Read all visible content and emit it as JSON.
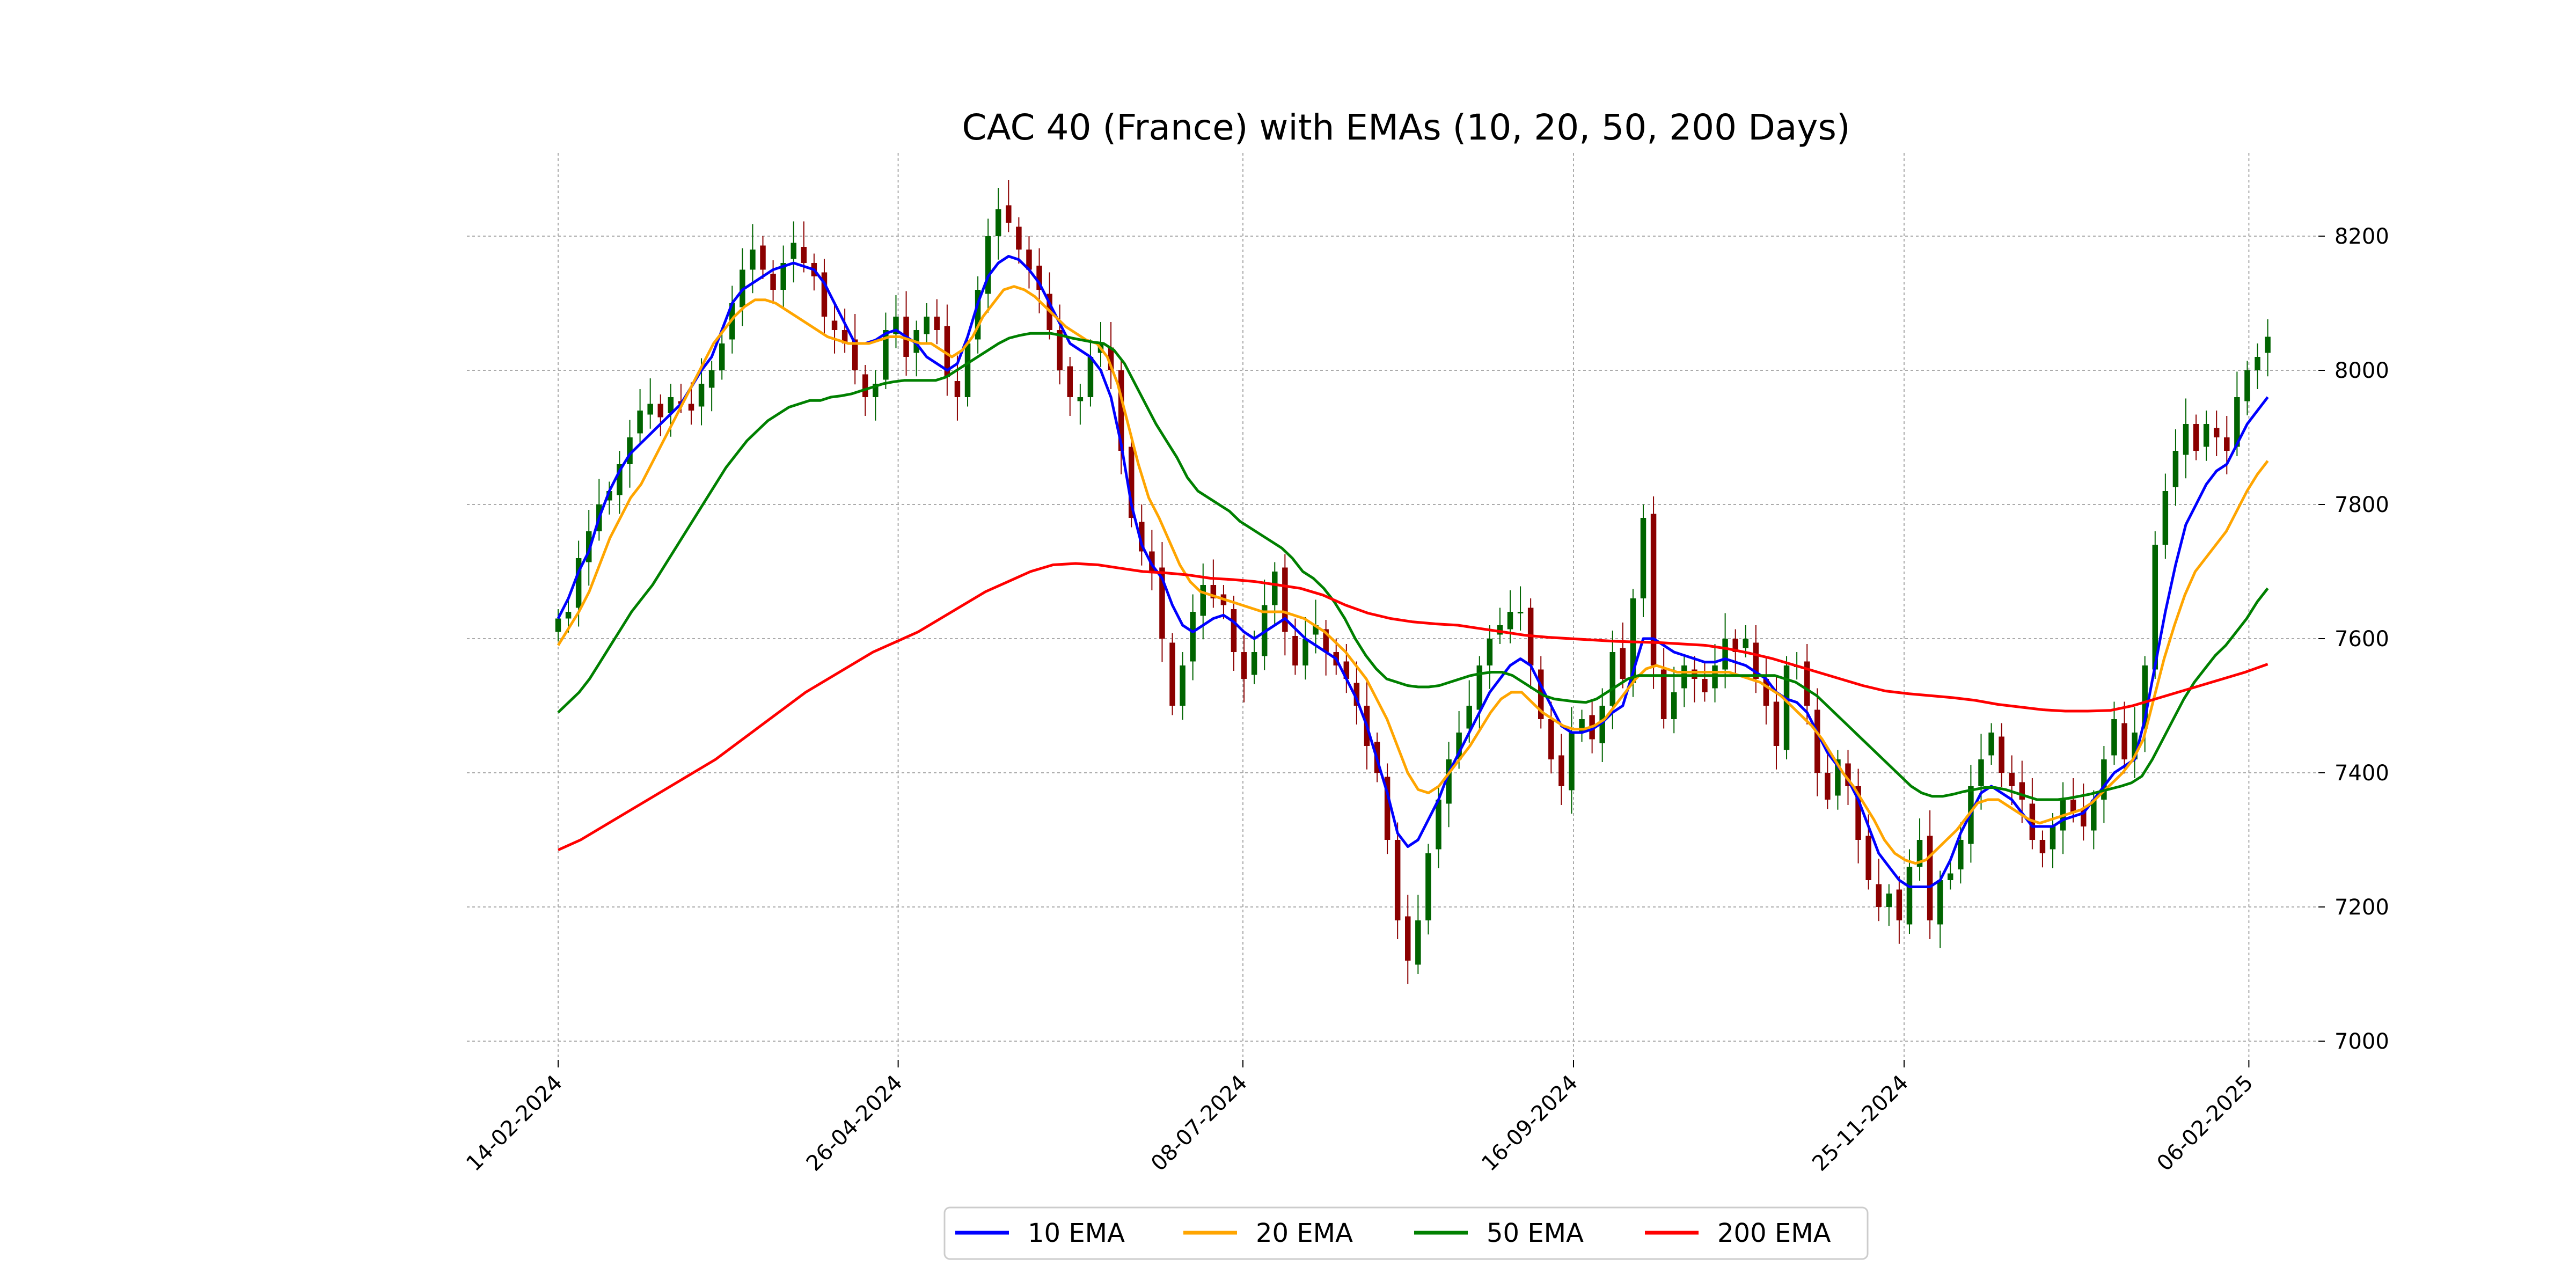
{
  "chart_data": {
    "type": "line",
    "title": "CAC 40 (France) with EMAs (10, 20, 50, 200 Days)",
    "xlabel": "",
    "ylabel": "",
    "x_ticks": [
      "14-02-2024",
      "26-04-2024",
      "08-07-2024",
      "16-09-2024",
      "25-11-2024",
      "06-02-2025"
    ],
    "y_ticks": [
      7000,
      7200,
      7400,
      7600,
      7800,
      8000,
      8200
    ],
    "ylim": [
      6970,
      8260
    ],
    "x_range": [
      "2024-02-14",
      "2025-02-10"
    ],
    "grid": true,
    "legend_position": "bottom-center",
    "colors": {
      "up": "#006400",
      "down": "#8B0000",
      "ema10": "#0000ff",
      "ema20": "#ffa500",
      "ema50": "#008000",
      "ema200": "#ff0000",
      "grid": "#aaaaaa"
    },
    "candles": {
      "dates": [
        "2024-02-14",
        "2025-02-10"
      ],
      "close": [
        7630,
        7640,
        7720,
        7760,
        7800,
        7820,
        7860,
        7900,
        7940,
        7950,
        7930,
        7960,
        7950,
        7940,
        7980,
        8000,
        8040,
        8100,
        8150,
        8180,
        8150,
        8120,
        8160,
        8190,
        8160,
        8140,
        8080,
        8060,
        8040,
        8000,
        7960,
        7980,
        8060,
        8080,
        8020,
        8060,
        8080,
        8060,
        7990,
        7960,
        8040,
        8120,
        8200,
        8240,
        8220,
        8180,
        8150,
        8120,
        8060,
        8000,
        7960,
        7960,
        8020,
        8040,
        8000,
        7880,
        7780,
        7730,
        7700,
        7600,
        7500,
        7560,
        7640,
        7680,
        7660,
        7650,
        7580,
        7540,
        7580,
        7650,
        7700,
        7610,
        7560,
        7600,
        7620,
        7580,
        7560,
        7540,
        7500,
        7440,
        7400,
        7300,
        7180,
        7120,
        7180,
        7280,
        7360,
        7420,
        7460,
        7500,
        7560,
        7600,
        7620,
        7640,
        7640,
        7560,
        7480,
        7420,
        7380,
        7460,
        7480,
        7450,
        7500,
        7580,
        7540,
        7660,
        7780,
        7560,
        7480,
        7520,
        7560,
        7540,
        7520,
        7560,
        7600,
        7580,
        7600,
        7540,
        7500,
        7440,
        7560,
        7560,
        7500,
        7400,
        7360,
        7420,
        7380,
        7300,
        7240,
        7200,
        7220,
        7180,
        7260,
        7300,
        7180,
        7240,
        7250,
        7300,
        7380,
        7420,
        7460,
        7400,
        7380,
        7360,
        7300,
        7280,
        7320,
        7360,
        7340,
        7320,
        7360,
        7420,
        7480,
        7420,
        7460,
        7560,
        7740,
        7820,
        7880,
        7920,
        7880,
        7920,
        7900,
        7880,
        7960,
        8000,
        8020,
        8050
      ]
    },
    "series": [
      {
        "name": "10 EMA",
        "values": [
          7630,
          7660,
          7700,
          7730,
          7780,
          7820,
          7850,
          7875,
          7890,
          7905,
          7920,
          7935,
          7950,
          7975,
          8000,
          8020,
          8060,
          8100,
          8120,
          8130,
          8140,
          8150,
          8155,
          8160,
          8155,
          8150,
          8130,
          8100,
          8070,
          8040,
          8040,
          8045,
          8055,
          8060,
          8050,
          8040,
          8020,
          8010,
          8000,
          8010,
          8050,
          8100,
          8140,
          8160,
          8170,
          8165,
          8150,
          8130,
          8100,
          8070,
          8040,
          8030,
          8020,
          8000,
          7960,
          7890,
          7800,
          7740,
          7710,
          7690,
          7650,
          7620,
          7610,
          7620,
          7630,
          7635,
          7625,
          7610,
          7600,
          7610,
          7620,
          7630,
          7615,
          7600,
          7590,
          7580,
          7570,
          7540,
          7510,
          7470,
          7420,
          7370,
          7310,
          7290,
          7300,
          7330,
          7360,
          7400,
          7430,
          7460,
          7490,
          7520,
          7540,
          7560,
          7570,
          7560,
          7530,
          7500,
          7470,
          7460,
          7460,
          7465,
          7475,
          7490,
          7500,
          7550,
          7600,
          7600,
          7590,
          7580,
          7575,
          7570,
          7565,
          7565,
          7570,
          7565,
          7560,
          7550,
          7540,
          7520,
          7510,
          7505,
          7490,
          7460,
          7430,
          7410,
          7390,
          7360,
          7320,
          7280,
          7260,
          7240,
          7230,
          7230,
          7230,
          7240,
          7270,
          7310,
          7340,
          7370,
          7380,
          7370,
          7360,
          7340,
          7320,
          7320,
          7320,
          7330,
          7335,
          7340,
          7360,
          7380,
          7400,
          7410,
          7420,
          7480,
          7560,
          7640,
          7710,
          7770,
          7800,
          7830,
          7850,
          7860,
          7890,
          7920,
          7940,
          7960
        ]
      },
      {
        "name": "20 EMA",
        "values": [
          7590,
          7615,
          7640,
          7670,
          7710,
          7750,
          7780,
          7810,
          7830,
          7860,
          7890,
          7920,
          7950,
          7980,
          8010,
          8040,
          8060,
          8080,
          8095,
          8105,
          8105,
          8100,
          8090,
          8080,
          8070,
          8060,
          8050,
          8045,
          8040,
          8040,
          8040,
          8045,
          8050,
          8050,
          8045,
          8040,
          8040,
          8030,
          8020,
          8030,
          8050,
          8080,
          8100,
          8120,
          8125,
          8120,
          8110,
          8095,
          8080,
          8065,
          8055,
          8045,
          8040,
          8020,
          7980,
          7920,
          7860,
          7810,
          7780,
          7745,
          7710,
          7685,
          7670,
          7665,
          7660,
          7655,
          7650,
          7645,
          7640,
          7640,
          7640,
          7635,
          7630,
          7620,
          7610,
          7595,
          7580,
          7560,
          7540,
          7510,
          7480,
          7440,
          7400,
          7375,
          7370,
          7380,
          7400,
          7420,
          7440,
          7465,
          7490,
          7510,
          7520,
          7520,
          7505,
          7490,
          7480,
          7470,
          7465,
          7465,
          7470,
          7480,
          7500,
          7520,
          7540,
          7555,
          7560,
          7555,
          7550,
          7550,
          7550,
          7550,
          7550,
          7550,
          7545,
          7540,
          7535,
          7525,
          7515,
          7500,
          7485,
          7470,
          7450,
          7425,
          7400,
          7380,
          7355,
          7330,
          7300,
          7280,
          7270,
          7265,
          7270,
          7285,
          7300,
          7315,
          7335,
          7355,
          7360,
          7360,
          7350,
          7340,
          7330,
          7325,
          7330,
          7335,
          7340,
          7345,
          7355,
          7370,
          7385,
          7400,
          7420,
          7450,
          7510,
          7570,
          7620,
          7665,
          7700,
          7720,
          7740,
          7760,
          7790,
          7820,
          7845,
          7865
        ]
      },
      {
        "name": "50 EMA",
        "values": [
          7490,
          7505,
          7520,
          7540,
          7565,
          7590,
          7615,
          7640,
          7660,
          7680,
          7705,
          7730,
          7755,
          7780,
          7805,
          7830,
          7855,
          7875,
          7895,
          7910,
          7925,
          7935,
          7945,
          7950,
          7955,
          7955,
          7960,
          7962,
          7965,
          7970,
          7975,
          7980,
          7983,
          7985,
          7985,
          7985,
          7985,
          7990,
          8000,
          8010,
          8020,
          8030,
          8040,
          8048,
          8052,
          8055,
          8055,
          8055,
          8052,
          8048,
          8045,
          8042,
          8040,
          8030,
          8010,
          7980,
          7950,
          7920,
          7895,
          7870,
          7840,
          7820,
          7810,
          7800,
          7790,
          7775,
          7765,
          7755,
          7745,
          7735,
          7720,
          7700,
          7690,
          7675,
          7655,
          7630,
          7600,
          7575,
          7555,
          7540,
          7535,
          7530,
          7528,
          7528,
          7530,
          7535,
          7540,
          7545,
          7548,
          7550,
          7550,
          7545,
          7535,
          7525,
          7515,
          7510,
          7508,
          7506,
          7505,
          7510,
          7520,
          7530,
          7540,
          7545,
          7545,
          7545,
          7545,
          7545,
          7545,
          7545,
          7545,
          7545,
          7545,
          7545,
          7545,
          7545,
          7545,
          7540,
          7535,
          7525,
          7515,
          7500,
          7485,
          7470,
          7455,
          7440,
          7425,
          7410,
          7395,
          7380,
          7370,
          7365,
          7365,
          7368,
          7372,
          7375,
          7378,
          7378,
          7375,
          7370,
          7365,
          7360,
          7360,
          7360,
          7362,
          7365,
          7368,
          7372,
          7376,
          7380,
          7385,
          7395,
          7420,
          7450,
          7480,
          7510,
          7535,
          7555,
          7575,
          7590,
          7610,
          7630,
          7655,
          7675
        ]
      },
      {
        "name": "200 EMA",
        "values": [
          7285,
          7300,
          7320,
          7340,
          7360,
          7380,
          7400,
          7420,
          7445,
          7470,
          7495,
          7520,
          7540,
          7560,
          7580,
          7595,
          7610,
          7630,
          7650,
          7670,
          7685,
          7700,
          7710,
          7712,
          7710,
          7705,
          7700,
          7698,
          7695,
          7690,
          7688,
          7685,
          7680,
          7675,
          7665,
          7650,
          7638,
          7630,
          7625,
          7622,
          7620,
          7615,
          7610,
          7605,
          7602,
          7600,
          7598,
          7596,
          7595,
          7594,
          7592,
          7590,
          7585,
          7578,
          7570,
          7560,
          7550,
          7540,
          7530,
          7522,
          7518,
          7515,
          7512,
          7508,
          7502,
          7498,
          7494,
          7492,
          7492,
          7493,
          7500,
          7510,
          7520,
          7530,
          7540,
          7550,
          7562
        ]
      }
    ]
  },
  "legend": {
    "items": [
      {
        "label": "10 EMA",
        "color": "#0000ff"
      },
      {
        "label": "20 EMA",
        "color": "#ffa500"
      },
      {
        "label": "50 EMA",
        "color": "#008000"
      },
      {
        "label": "200 EMA",
        "color": "#ff0000"
      }
    ]
  }
}
